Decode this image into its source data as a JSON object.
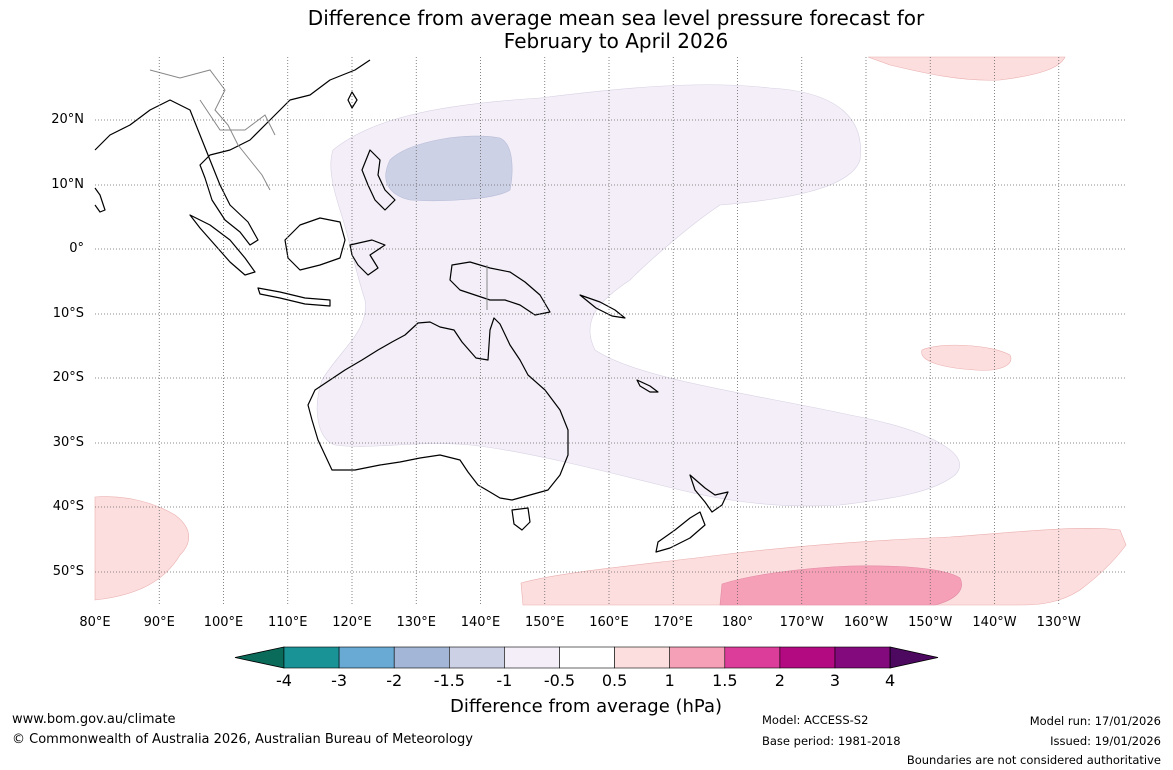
{
  "title": {
    "line1": "Difference from average mean sea level pressure forecast for",
    "line2": "February to April 2026"
  },
  "map": {
    "lat_ticks": [
      "20°N",
      "10°N",
      "0°",
      "10°S",
      "20°S",
      "30°S",
      "40°S",
      "50°S"
    ],
    "lon_ticks": [
      "80°E",
      "90°E",
      "100°E",
      "110°E",
      "120°E",
      "130°E",
      "140°E",
      "150°E",
      "160°E",
      "170°E",
      "180°",
      "170°W",
      "160°W",
      "150°W",
      "140°W",
      "130°W"
    ],
    "regions": [
      {
        "name": "tropical-low-band",
        "category": "-1 to -0.5"
      },
      {
        "name": "philippine-sea-low",
        "category": "-1.5 to -1"
      },
      {
        "name": "southern-ocean-high",
        "category": "0.5 to 1"
      },
      {
        "name": "southern-ocean-high-core",
        "category": "1 to 1.5"
      },
      {
        "name": "north-pacific-high",
        "category": "0.5 to 1"
      },
      {
        "name": "southern-indian-high",
        "category": "0.5 to 1"
      },
      {
        "name": "french-polynesia-high",
        "category": "0.5 to 1"
      }
    ]
  },
  "colorbar": {
    "title": "Difference from average (hPa)",
    "labels": [
      "-4",
      "-3",
      "-2",
      "-1.5",
      "-1",
      "-0.5",
      "0.5",
      "1",
      "1.5",
      "2",
      "3",
      "4"
    ],
    "colors": [
      "#0b6b5b",
      "#1a9396",
      "#68aad4",
      "#a3b6d7",
      "#cdd1e6",
      "#f3eef7",
      "#ffffff",
      "#fddede",
      "#f6a0b8",
      "#dc3d9b",
      "#b30a82",
      "#820a7c",
      "#4d0860"
    ]
  },
  "footer": {
    "website": "www.bom.gov.au/climate",
    "copyright": "© Commonwealth of Australia 2026, Australian Bureau of Meteorology",
    "model": "Model: ACCESS-S2",
    "base_period": "Base period: 1981-2018",
    "model_run": "Model run: 17/01/2026",
    "issued": "Issued: 19/01/2026",
    "disclaimer": "Boundaries are not considered authoritative"
  }
}
